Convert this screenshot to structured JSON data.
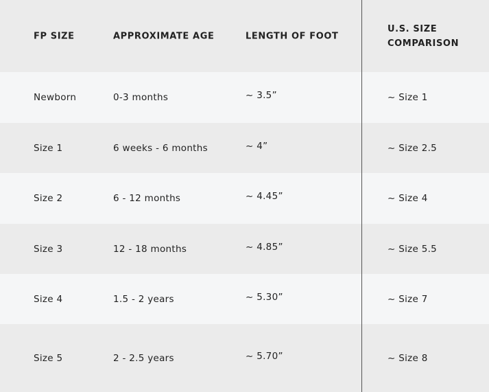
{
  "table": {
    "headers": [
      "FP SIZE",
      "APPROXIMATE AGE",
      "LENGTH OF FOOT",
      "U.S. SIZE",
      "COMPARISON"
    ],
    "rows": [
      [
        "Newborn",
        "0-3 months",
        "~ 3.5”",
        "~ Size 1"
      ],
      [
        "Size 1",
        "6 weeks - 6 months",
        "~ 4”",
        "~ Size 2.5"
      ],
      [
        "Size 2",
        "6 - 12 months",
        "~ 4.45”",
        "~ Size 4"
      ],
      [
        "Size 3",
        "12 - 18 months",
        "~ 4.85”",
        "~ Size 5.5"
      ],
      [
        "Size 4",
        "1.5 - 2 years",
        "~ 5.30”",
        "~ Size 7"
      ],
      [
        "Size 5",
        "2 - 2.5 years",
        "~ 5.70”",
        "~ Size 8"
      ]
    ]
  },
  "colors": {
    "header_bg": "#ebebeb",
    "row_light": "#f5f6f7",
    "row_gray": "#ebebeb",
    "divider": "#555555"
  }
}
